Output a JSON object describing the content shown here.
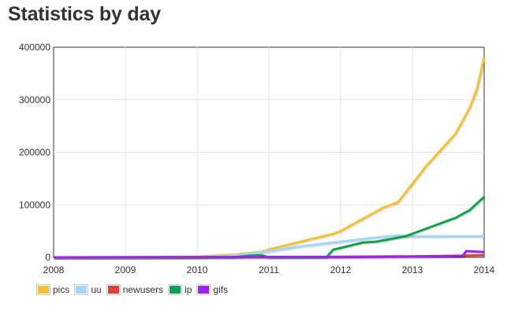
{
  "page": {
    "title": "Statistics by day"
  },
  "chart_data": {
    "type": "line",
    "title": "Statistics by day",
    "xlabel": "",
    "ylabel": "",
    "x_ticks": [
      "2008",
      "2009",
      "2010",
      "2011",
      "2012",
      "2013",
      "2014"
    ],
    "y_ticks": [
      "0",
      "100000",
      "200000",
      "300000",
      "400000"
    ],
    "xlim": [
      2008,
      2014
    ],
    "ylim": [
      0,
      400000
    ],
    "grid": true,
    "legend_position": "bottom-left",
    "series": [
      {
        "name": "pics",
        "color": "#f2c12e",
        "points": [
          [
            2008.0,
            0
          ],
          [
            2009.0,
            300
          ],
          [
            2010.0,
            1500
          ],
          [
            2010.5,
            5000
          ],
          [
            2010.9,
            11000
          ],
          [
            2011.0,
            15000
          ],
          [
            2011.3,
            25000
          ],
          [
            2011.6,
            35000
          ],
          [
            2011.9,
            45000
          ],
          [
            2012.0,
            50000
          ],
          [
            2012.2,
            65000
          ],
          [
            2012.4,
            80000
          ],
          [
            2012.6,
            95000
          ],
          [
            2012.8,
            105000
          ],
          [
            2013.0,
            140000
          ],
          [
            2013.2,
            175000
          ],
          [
            2013.4,
            205000
          ],
          [
            2013.6,
            235000
          ],
          [
            2013.8,
            285000
          ],
          [
            2013.9,
            320000
          ],
          [
            2014.0,
            380000
          ]
        ]
      },
      {
        "name": "uu",
        "color": "#a6d6f5",
        "points": [
          [
            2008.0,
            0
          ],
          [
            2010.0,
            500
          ],
          [
            2010.5,
            3000
          ],
          [
            2011.0,
            12000
          ],
          [
            2011.5,
            22000
          ],
          [
            2012.0,
            30000
          ],
          [
            2012.5,
            38000
          ],
          [
            2012.8,
            42000
          ],
          [
            2013.0,
            40000
          ],
          [
            2014.0,
            40000
          ]
        ]
      },
      {
        "name": "newusers",
        "color": "#e0403a",
        "points": [
          [
            2008.0,
            0
          ],
          [
            2012.0,
            500
          ],
          [
            2013.0,
            1500
          ],
          [
            2013.5,
            2500
          ],
          [
            2014.0,
            4000
          ]
        ]
      },
      {
        "name": "ip",
        "color": "#0fa14b",
        "points": [
          [
            2008.0,
            0
          ],
          [
            2010.5,
            0
          ],
          [
            2010.7,
            3000
          ],
          [
            2010.9,
            4000
          ],
          [
            2011.0,
            0
          ],
          [
            2011.8,
            0
          ],
          [
            2011.9,
            15000
          ],
          [
            2012.0,
            18000
          ],
          [
            2012.3,
            28000
          ],
          [
            2012.5,
            30000
          ],
          [
            2012.7,
            35000
          ],
          [
            2012.9,
            40000
          ],
          [
            2013.0,
            45000
          ],
          [
            2013.3,
            60000
          ],
          [
            2013.6,
            75000
          ],
          [
            2013.8,
            90000
          ],
          [
            2014.0,
            115000
          ]
        ]
      },
      {
        "name": "gifs",
        "color": "#a020f0",
        "points": [
          [
            2008.0,
            0
          ],
          [
            2012.0,
            1000
          ],
          [
            2013.0,
            2000
          ],
          [
            2013.7,
            3000
          ],
          [
            2013.75,
            12000
          ],
          [
            2014.0,
            10000
          ]
        ]
      }
    ]
  }
}
